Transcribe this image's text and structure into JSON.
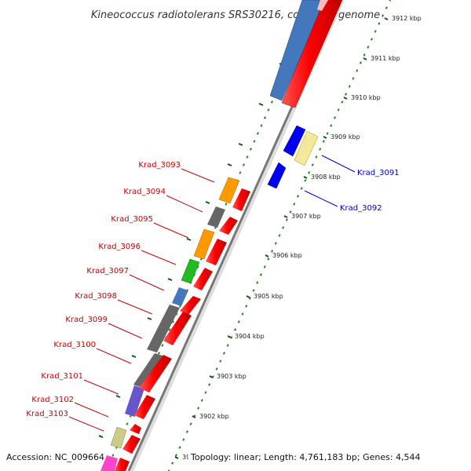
{
  "title": "Kineococcus radiotolerans SRS30216, complete genome",
  "footer": {
    "accession": "Accession: NC_009664",
    "stats": "Topology: linear; Length: 4,761,183 bp; Genes: 4,544"
  },
  "colors": {
    "backbone_dark": "#777777",
    "backbone_light": "#dddddd",
    "tick_green": "#228822",
    "label_left": "#cc0000",
    "label_right": "#0000cc"
  },
  "ticks": [
    {
      "label": "3912 kbp"
    },
    {
      "label": "3911 kbp"
    },
    {
      "label": "3910 kbp"
    },
    {
      "label": "3909 kbp"
    },
    {
      "label": "3908 kbp"
    },
    {
      "label": "3907 kbp"
    },
    {
      "label": "3906 kbp"
    },
    {
      "label": "3905 kbp"
    },
    {
      "label": "3904 kbp"
    },
    {
      "label": "3903 kbp"
    },
    {
      "label": "3902 kbp"
    },
    {
      "label": "3901 kbp"
    }
  ],
  "genes_left": [
    {
      "label": "Krad_3093"
    },
    {
      "label": "Krad_3094"
    },
    {
      "label": "Krad_3095"
    },
    {
      "label": "Krad_3096"
    },
    {
      "label": "Krad_3097"
    },
    {
      "label": "Krad_3098"
    },
    {
      "label": "Krad_3099"
    },
    {
      "label": "Krad_3100"
    },
    {
      "label": "Krad_3101"
    },
    {
      "label": "Krad_3102"
    },
    {
      "label": "Krad_3103"
    }
  ],
  "genes_right": [
    {
      "label": "Krad_3091"
    },
    {
      "label": "Krad_3092"
    }
  ]
}
